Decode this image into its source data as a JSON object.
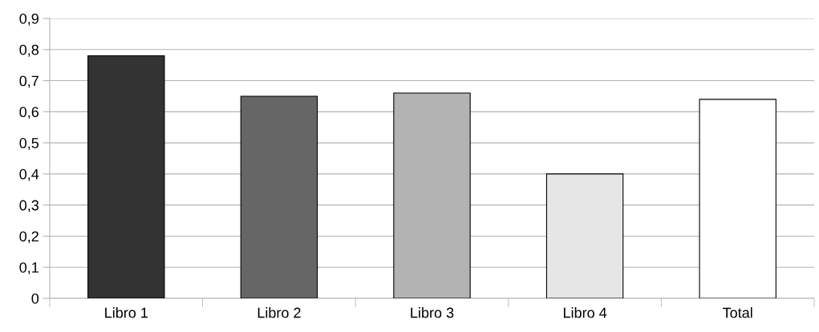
{
  "chart_data": {
    "type": "bar",
    "categories": [
      "Libro 1",
      "Libro 2",
      "Libro 3",
      "Libro 4",
      "Total"
    ],
    "values": [
      0.78,
      0.65,
      0.66,
      0.4,
      0.64
    ],
    "colors": [
      "#333333",
      "#666666",
      "#b3b3b3",
      "#e6e6e6",
      "#ffffff"
    ],
    "ylim": [
      0,
      0.9
    ],
    "yticks": [
      0,
      {
        "value": 0.1,
        "label": "0,1"
      },
      {
        "value": 0.2,
        "label": "0,2"
      },
      {
        "value": 0.3,
        "label": "0,3"
      },
      {
        "value": 0.4,
        "label": "0,4"
      },
      {
        "value": 0.5,
        "label": "0,5"
      },
      {
        "value": 0.6,
        "label": "0,6"
      },
      {
        "value": 0.7,
        "label": "0,7"
      },
      {
        "value": 0.8,
        "label": "0,8"
      },
      {
        "value": 0.9,
        "label": "0,9"
      }
    ],
    "grid": "y",
    "legend": false
  }
}
